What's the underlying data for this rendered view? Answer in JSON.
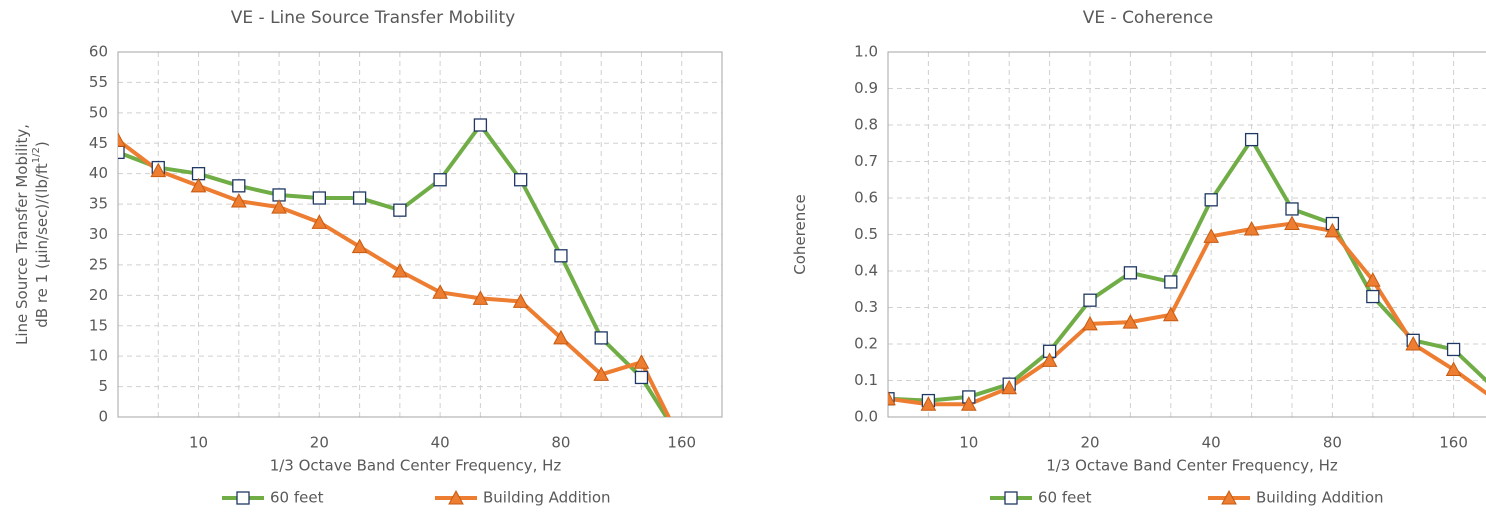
{
  "chart_data": [
    {
      "type": "line",
      "title": "VE - Line Source  Transfer  Mobility",
      "xlabel": "1/3 Octave Band Center Frequency, Hz",
      "ylabel_lines": [
        "Line Source Transfer Mobility,",
        "dB re 1 (µin/sec)/(lb/ft",
        ")"
      ],
      "ylabel_superscript": "1/2",
      "categories": [
        null,
        null,
        "10",
        null,
        null,
        "20",
        null,
        null,
        "40",
        null,
        null,
        "80",
        null,
        null,
        "160",
        null
      ],
      "series": [
        {
          "name": "60 feet",
          "color": "#70ad47",
          "marker": "square",
          "values": [
            43.5,
            41,
            40,
            38,
            36.5,
            36,
            36,
            34,
            39,
            48,
            39,
            26.5,
            13,
            6.5,
            -4,
            null
          ]
        },
        {
          "name": "Building Addition",
          "color": "#ed7d31",
          "marker": "triangle",
          "values": [
            45.5,
            40.5,
            38,
            35.5,
            34.5,
            32,
            28,
            24,
            20.5,
            19.5,
            19,
            13,
            7,
            9,
            -4.3,
            null
          ]
        }
      ],
      "ylim": [
        0,
        60
      ],
      "yticks": [
        0,
        5,
        10,
        15,
        20,
        25,
        30,
        35,
        40,
        45,
        50,
        55,
        60
      ],
      "grid": true,
      "legend": "bottom"
    },
    {
      "type": "line",
      "title": "VE - Coherence",
      "xlabel": "1/3 Octave Band Center Frequency, Hz",
      "ylabel_lines": [
        "Coherence"
      ],
      "categories": [
        null,
        null,
        "10",
        null,
        null,
        "20",
        null,
        null,
        "40",
        null,
        null,
        "80",
        null,
        null,
        "160",
        null
      ],
      "series": [
        {
          "name": "60 feet",
          "color": "#70ad47",
          "marker": "square",
          "values": [
            0.05,
            0.045,
            0.055,
            0.09,
            0.18,
            0.32,
            0.395,
            0.37,
            0.595,
            0.76,
            0.57,
            0.53,
            0.33,
            0.21,
            0.185,
            0.08
          ]
        },
        {
          "name": "Building Addition",
          "color": "#ed7d31",
          "marker": "triangle",
          "values": [
            0.05,
            0.035,
            0.035,
            0.08,
            0.155,
            0.255,
            0.26,
            0.28,
            0.495,
            0.515,
            0.53,
            0.51,
            0.375,
            0.2,
            0.13,
            0.05
          ]
        }
      ],
      "ylim": [
        0,
        1
      ],
      "yticks": [
        {
          "value": 0,
          "label": "0.0"
        },
        0.1,
        0.2,
        0.3,
        0.4,
        0.5,
        0.6,
        0.7,
        0.8,
        0.9,
        {
          "value": 1,
          "label": "1.0"
        }
      ],
      "grid": true,
      "legend": "bottom"
    }
  ]
}
